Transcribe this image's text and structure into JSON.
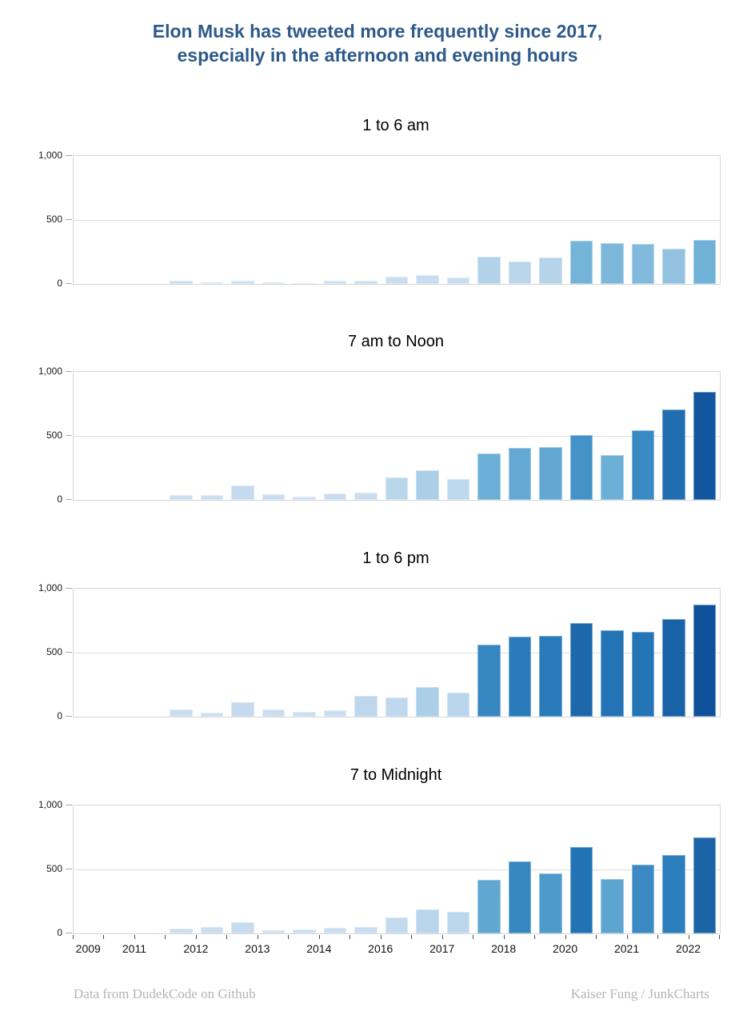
{
  "title": {
    "line1": "Elon Musk has tweeted more frequently since 2017,",
    "line2": "especially in the afternoon and evening hours"
  },
  "footer": {
    "left": "Data from DudekCode on Github",
    "right": "Kaiser Fung / JunkCharts"
  },
  "colors": {
    "title_text": "#2d5a8a",
    "axis_text": "#1a1a1a",
    "grid": "#dedede",
    "plot_border": "#d6d6d6",
    "footer_text": "#b4b4b4",
    "bar_ramp": [
      [
        0,
        "#cfe1f2"
      ],
      [
        100,
        "#c6dbef"
      ],
      [
        200,
        "#b7d4ea"
      ],
      [
        250,
        "#a3cbe4"
      ],
      [
        300,
        "#87bdde"
      ],
      [
        350,
        "#6db0d7"
      ],
      [
        420,
        "#60a7d2"
      ],
      [
        470,
        "#4e9aca"
      ],
      [
        540,
        "#3a8ac3"
      ],
      [
        610,
        "#2d7ebc"
      ],
      [
        680,
        "#2272b4"
      ],
      [
        750,
        "#1b64a8"
      ],
      [
        880,
        "#0f519b"
      ],
      [
        1000,
        "#08458f"
      ]
    ]
  },
  "chart_data": [
    {
      "type": "bar",
      "title": "1 to 6 am",
      "categories": [
        "2009",
        "2011 H1",
        "2011 H2",
        "2012 H1",
        "2012 H2",
        "2013 H1",
        "2013 H2",
        "2014 H1",
        "2014 H2",
        "2016 H1",
        "2016 H2",
        "2017 H1",
        "2017 H2",
        "2018 H1",
        "2018 H2",
        "2020 H1",
        "2020 H2",
        "2021 H1",
        "2021 H2",
        "2022 H1",
        "2022 H2"
      ],
      "values": [
        0,
        0,
        0,
        28,
        12,
        25,
        10,
        8,
        22,
        27,
        57,
        70,
        50,
        212,
        178,
        205,
        335,
        320,
        310,
        277,
        345
      ],
      "ylim": [
        0,
        1000
      ],
      "ytick_values": [
        0,
        500,
        1000
      ],
      "ytick_labels": [
        "0",
        "500",
        "1,000"
      ],
      "grid": true,
      "legend": "none"
    },
    {
      "type": "bar",
      "title": "7 am to Noon",
      "categories": [
        "2009",
        "2011 H1",
        "2011 H2",
        "2012 H1",
        "2012 H2",
        "2013 H1",
        "2013 H2",
        "2014 H1",
        "2014 H2",
        "2016 H1",
        "2016 H2",
        "2017 H1",
        "2017 H2",
        "2018 H1",
        "2018 H2",
        "2020 H1",
        "2020 H2",
        "2021 H1",
        "2021 H2",
        "2022 H1",
        "2022 H2"
      ],
      "values": [
        0,
        0,
        0,
        40,
        35,
        110,
        45,
        25,
        48,
        55,
        178,
        230,
        160,
        360,
        405,
        410,
        505,
        350,
        545,
        705,
        845
      ],
      "ylim": [
        0,
        1000
      ],
      "ytick_values": [
        0,
        500,
        1000
      ],
      "ytick_labels": [
        "0",
        "500",
        "1,000"
      ],
      "grid": true,
      "legend": "none"
    },
    {
      "type": "bar",
      "title": "1 to 6 pm",
      "categories": [
        "2009",
        "2011 H1",
        "2011 H2",
        "2012 H1",
        "2012 H2",
        "2013 H1",
        "2013 H2",
        "2014 H1",
        "2014 H2",
        "2016 H1",
        "2016 H2",
        "2017 H1",
        "2017 H2",
        "2018 H1",
        "2018 H2",
        "2020 H1",
        "2020 H2",
        "2021 H1",
        "2021 H2",
        "2022 H1",
        "2022 H2"
      ],
      "values": [
        0,
        0,
        0,
        58,
        32,
        110,
        57,
        40,
        50,
        160,
        150,
        230,
        185,
        560,
        627,
        633,
        732,
        675,
        665,
        765,
        878
      ],
      "ylim": [
        0,
        1000
      ],
      "ytick_values": [
        0,
        500,
        1000
      ],
      "ytick_labels": [
        "0",
        "500",
        "1,000"
      ],
      "grid": true,
      "legend": "none"
    },
    {
      "type": "bar",
      "title": "7 to Midnight",
      "categories": [
        "2009",
        "2011 H1",
        "2011 H2",
        "2012 H1",
        "2012 H2",
        "2013 H1",
        "2013 H2",
        "2014 H1",
        "2014 H2",
        "2016 H1",
        "2016 H2",
        "2017 H1",
        "2017 H2",
        "2018 H1",
        "2018 H2",
        "2020 H1",
        "2020 H2",
        "2021 H1",
        "2021 H2",
        "2022 H1",
        "2022 H2"
      ],
      "values": [
        0,
        0,
        0,
        36,
        53,
        85,
        25,
        32,
        43,
        50,
        127,
        185,
        170,
        420,
        565,
        470,
        677,
        428,
        538,
        610,
        750
      ],
      "ylim": [
        0,
        1000
      ],
      "ytick_values": [
        0,
        500,
        1000
      ],
      "ytick_labels": [
        "0",
        "500",
        "1,000"
      ],
      "grid": true,
      "legend": "none",
      "x_axis": {
        "tick_boundaries": 22,
        "labels": [
          {
            "text": "2009",
            "pos": 0.5
          },
          {
            "text": "2011",
            "pos": 2
          },
          {
            "text": "2012",
            "pos": 4
          },
          {
            "text": "2013",
            "pos": 6
          },
          {
            "text": "2014",
            "pos": 8
          },
          {
            "text": "2016",
            "pos": 10
          },
          {
            "text": "2017",
            "pos": 12
          },
          {
            "text": "2018",
            "pos": 14
          },
          {
            "text": "2020",
            "pos": 16
          },
          {
            "text": "2021",
            "pos": 18
          },
          {
            "text": "2022",
            "pos": 20
          }
        ]
      }
    }
  ]
}
